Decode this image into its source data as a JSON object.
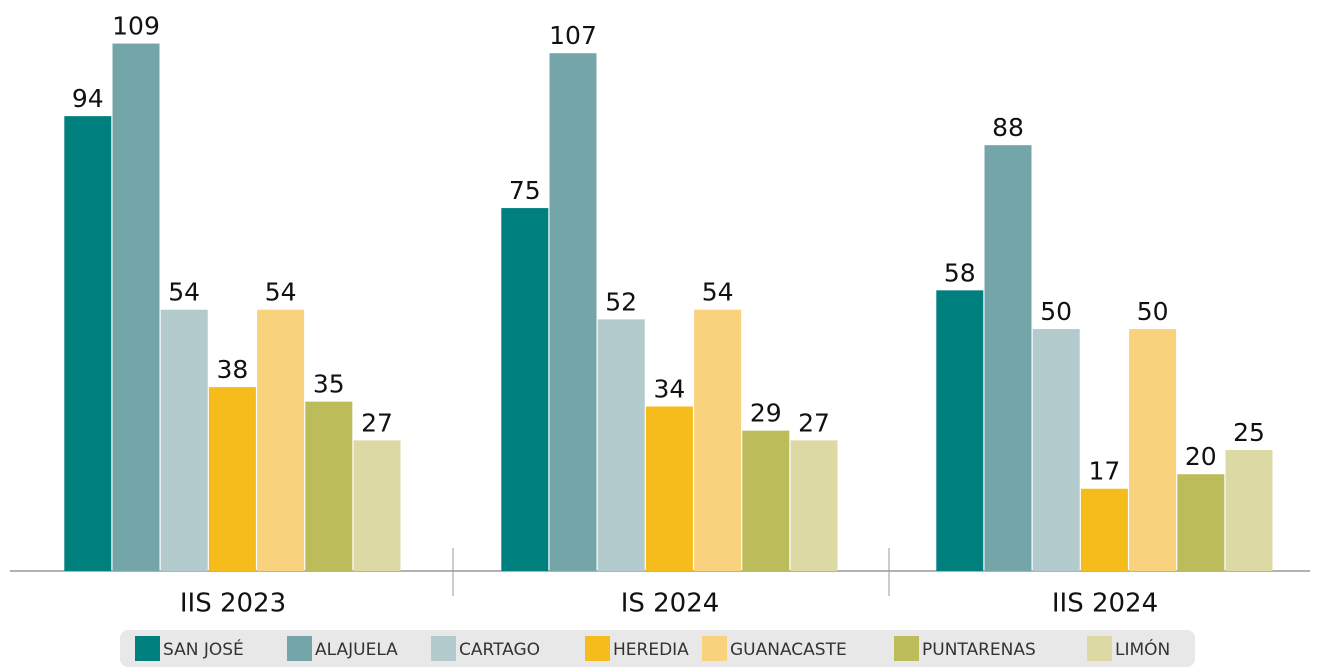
{
  "chart_data": {
    "type": "bar",
    "categories": [
      "IIS 2023",
      "IS 2024",
      "IIS 2024"
    ],
    "series": [
      {
        "name": "SAN JOSÉ",
        "color": "#007f7f",
        "values": [
          94,
          75,
          58
        ]
      },
      {
        "name": "ALAJUELA",
        "color": "#74a5a8",
        "values": [
          109,
          107,
          88
        ]
      },
      {
        "name": "CARTAGO",
        "color": "#b4cbcd",
        "values": [
          54,
          52,
          50
        ]
      },
      {
        "name": "HEREDIA",
        "color": "#f5bc1c",
        "values": [
          38,
          34,
          17
        ]
      },
      {
        "name": "GUANACASTE",
        "color": "#f9d27d",
        "values": [
          54,
          54,
          50
        ]
      },
      {
        "name": "PUNTARENAS",
        "color": "#bcbd5a",
        "values": [
          35,
          29,
          20
        ]
      },
      {
        "name": "LIMÓN",
        "color": "#dcd9a4",
        "values": [
          27,
          27,
          25
        ]
      }
    ],
    "ylim": [
      0,
      118
    ],
    "legend": "bottom"
  }
}
